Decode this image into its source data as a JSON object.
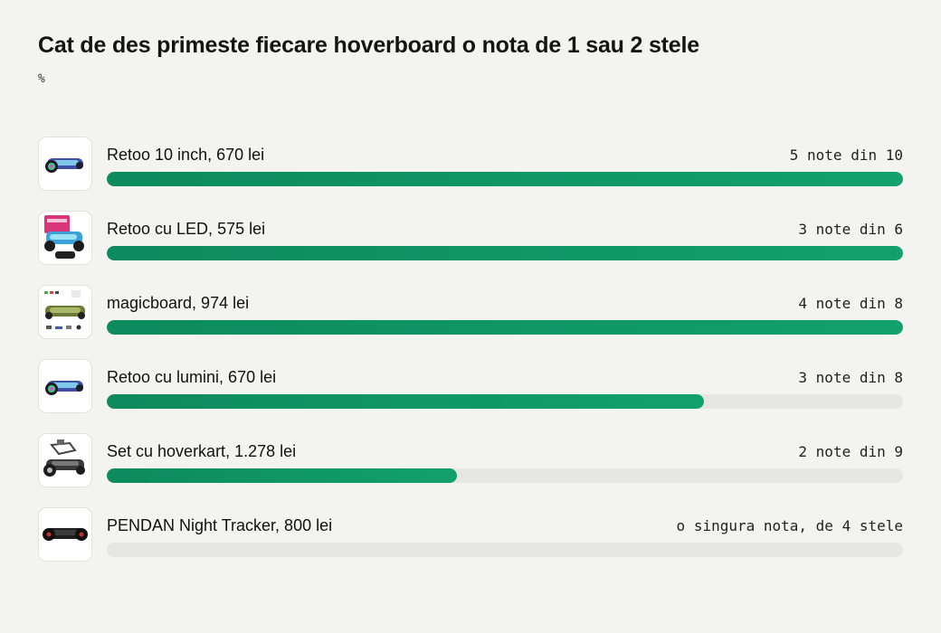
{
  "chart_data": {
    "type": "bar",
    "orientation": "horizontal",
    "title": "Cat de des primeste fiecare hoverboard o nota de 1 sau 2 stele",
    "unit": "%",
    "xlim": [
      0,
      100
    ],
    "colors": {
      "bar": "#11996b",
      "track": "#e6e7e2"
    },
    "categories": [
      "Retoo 10 inch, 670 lei",
      "Retoo cu LED, 575 lei",
      "magicboard, 974 lei",
      "Retoo cu lumini, 670 lei",
      "Set cu hoverkart, 1.278 lei",
      "PENDAN Night Tracker, 800 lei"
    ],
    "values": [
      100,
      100,
      100,
      75,
      44,
      0
    ],
    "annotations": [
      "5 note din 10",
      "3 note din 6",
      "4 note din 8",
      "3 note din 8",
      "2 note din 9",
      "o singura nota, de 4 stele"
    ],
    "thumbnails": [
      "hoverboard-galaxy-icon",
      "hoverboard-boxed-led-icon",
      "hoverboard-camo-product-sheet-icon",
      "hoverboard-galaxy-icon",
      "hoverkart-set-icon",
      "hoverboard-black-icon"
    ]
  }
}
